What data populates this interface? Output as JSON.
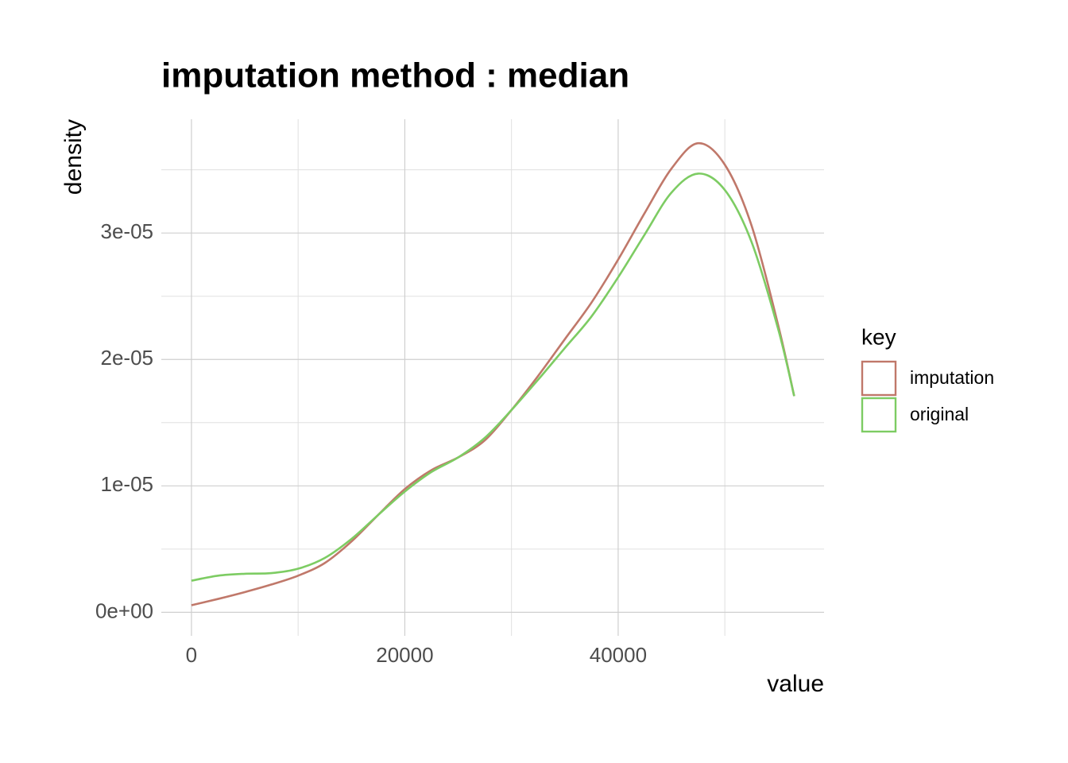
{
  "chart_data": {
    "type": "line",
    "title": "imputation method : median",
    "x_label": "value",
    "y_label": "density",
    "legend_title": "key",
    "legend_position": "right",
    "grid": true,
    "x": [
      0,
      2500,
      5000,
      7500,
      10000,
      12500,
      15000,
      17500,
      20000,
      22500,
      25000,
      27500,
      30000,
      32500,
      35000,
      37500,
      40000,
      42500,
      45000,
      47500,
      50000,
      52500,
      55000,
      56500
    ],
    "series": [
      {
        "name": "imputation",
        "color": "#c0786a",
        "values": [
          5.6e-07,
          1.06e-06,
          1.6e-06,
          2.2e-06,
          2.9e-06,
          3.9e-06,
          5.6e-06,
          7.7e-06,
          9.75e-06,
          1.125e-05,
          1.225e-05,
          1.36e-05,
          1.6e-05,
          1.87e-05,
          2.16e-05,
          2.45e-05,
          2.79e-05,
          3.16e-05,
          3.51e-05,
          3.71e-05,
          3.54e-05,
          3.06e-05,
          2.27e-05,
          1.71e-05
        ]
      },
      {
        "name": "original",
        "color": "#7dcc63",
        "values": [
          2.5e-06,
          2.9e-06,
          3.05e-06,
          3.1e-06,
          3.45e-06,
          4.3e-06,
          5.8e-06,
          7.7e-06,
          9.55e-06,
          1.11e-05,
          1.225e-05,
          1.38e-05,
          1.6e-05,
          1.84e-05,
          2.09e-05,
          2.34e-05,
          2.65e-05,
          2.99e-05,
          3.32e-05,
          3.47e-05,
          3.34e-05,
          2.93e-05,
          2.24e-05,
          1.71e-05
        ]
      }
    ],
    "xlim": [
      -2824,
      59299
    ],
    "xticks": [
      0,
      20000,
      40000
    ],
    "xminor": [
      10000,
      30000,
      50000
    ],
    "ylim": [
      -1.86e-06,
      3.9e-05
    ],
    "yticks": [
      {
        "value": 0,
        "label": "0e+00"
      },
      {
        "value": 1e-05,
        "label": "1e-05"
      },
      {
        "value": 2e-05,
        "label": "2e-05"
      },
      {
        "value": 3e-05,
        "label": "3e-05"
      }
    ],
    "yminor": [
      5e-06,
      1.5e-05,
      2.5e-05,
      3.5e-05
    ]
  }
}
